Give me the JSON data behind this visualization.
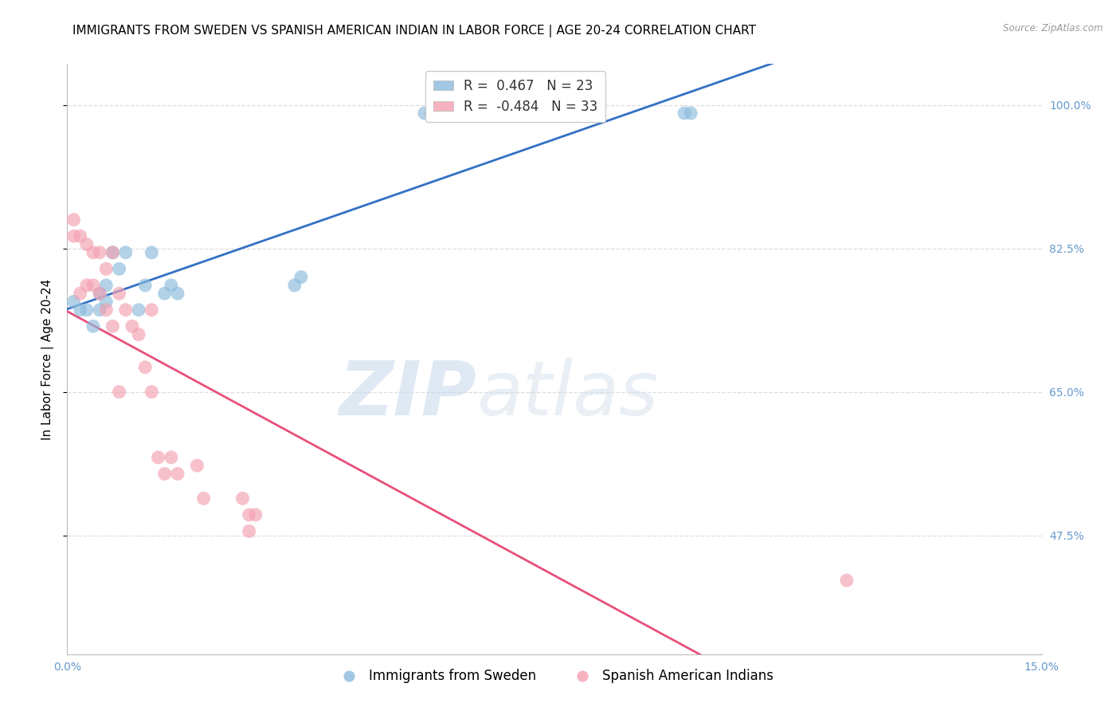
{
  "title": "IMMIGRANTS FROM SWEDEN VS SPANISH AMERICAN INDIAN IN LABOR FORCE | AGE 20-24 CORRELATION CHART",
  "source": "Source: ZipAtlas.com",
  "ylabel": "In Labor Force | Age 20-24",
  "xlim": [
    0.0,
    0.15
  ],
  "ylim": [
    0.33,
    1.05
  ],
  "yticks": [
    0.475,
    0.65,
    0.825,
    1.0
  ],
  "ytick_labels": [
    "47.5%",
    "65.0%",
    "82.5%",
    "100.0%"
  ],
  "xticks": [
    0.0,
    0.025,
    0.05,
    0.075,
    0.1,
    0.125,
    0.15
  ],
  "blue_color": "#8abbdd",
  "pink_color": "#f4a0b0",
  "blue_line_color": "#3370c4",
  "pink_line_color": "#e8507a",
  "sweden_x": [
    0.001,
    0.002,
    0.003,
    0.004,
    0.005,
    0.005,
    0.006,
    0.006,
    0.007,
    0.008,
    0.009,
    0.011,
    0.012,
    0.013,
    0.015,
    0.016,
    0.017,
    0.035,
    0.036,
    0.055,
    0.056,
    0.095,
    0.096
  ],
  "sweden_y": [
    0.76,
    0.75,
    0.75,
    0.73,
    0.75,
    0.77,
    0.76,
    0.78,
    0.82,
    0.8,
    0.82,
    0.75,
    0.78,
    0.82,
    0.77,
    0.78,
    0.77,
    0.78,
    0.79,
    0.99,
    0.99,
    0.99,
    0.99
  ],
  "spanish_x": [
    0.001,
    0.001,
    0.002,
    0.002,
    0.003,
    0.003,
    0.004,
    0.004,
    0.005,
    0.005,
    0.006,
    0.006,
    0.007,
    0.007,
    0.008,
    0.008,
    0.009,
    0.01,
    0.011,
    0.012,
    0.013,
    0.013,
    0.014,
    0.015,
    0.016,
    0.017,
    0.02,
    0.021,
    0.027,
    0.028,
    0.028,
    0.029,
    0.12
  ],
  "spanish_y": [
    0.86,
    0.84,
    0.84,
    0.77,
    0.83,
    0.78,
    0.82,
    0.78,
    0.82,
    0.77,
    0.8,
    0.75,
    0.82,
    0.73,
    0.77,
    0.65,
    0.75,
    0.73,
    0.72,
    0.68,
    0.75,
    0.65,
    0.57,
    0.55,
    0.57,
    0.55,
    0.56,
    0.52,
    0.52,
    0.5,
    0.48,
    0.5,
    0.42
  ],
  "background_color": "#ffffff",
  "grid_color": "#dddddd",
  "watermark_zip": "ZIP",
  "watermark_atlas": "atlas",
  "title_fontsize": 11,
  "axis_label_fontsize": 11,
  "tick_fontsize": 10,
  "legend_r_blue": "0.467",
  "legend_n_blue": "23",
  "legend_r_pink": "-0.484",
  "legend_n_pink": "33",
  "right_tick_color": "#6699cc"
}
